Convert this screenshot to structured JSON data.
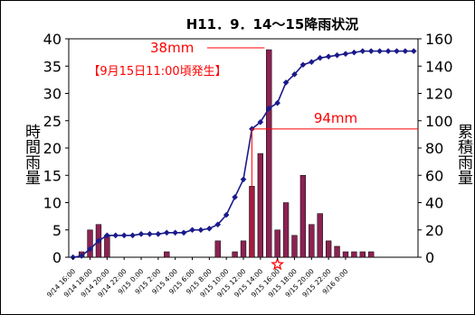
{
  "chart_data": {
    "type": "bar+line",
    "title": "H11．9．14～15降雨状況",
    "ylabel_left": "時間雨量",
    "ylabel_right": "累積雨量",
    "ylim_left": [
      0,
      40
    ],
    "ylim_right": [
      0,
      160
    ],
    "yticks_left": [
      "0",
      "5",
      "10",
      "15",
      "20",
      "25",
      "30",
      "35",
      "40"
    ],
    "yticks_right": [
      "0",
      "20",
      "40",
      "60",
      "80",
      "100",
      "120",
      "140",
      "160"
    ],
    "x_tick_labels": [
      "9/14 16:00",
      "9/14 18:00",
      "9/14 20:00",
      "9/14 22:00",
      "9/15 0:00",
      "9/15 2:00",
      "9/15 4:00",
      "9/15 6:00",
      "9/15 8:00",
      "9/15 10:00",
      "9/15 12:00",
      "9/15 14:00",
      "9/15 16:00",
      "9/15 18:00",
      "9/15 20:00",
      "9/15 22:00",
      "9/16 0:00"
    ],
    "series": [
      {
        "kind": "bar",
        "axis": "left",
        "color": "#8b2252",
        "values": [
          0,
          1,
          5,
          6,
          4,
          0,
          0,
          0,
          0,
          0,
          0,
          1,
          0,
          0,
          0,
          0,
          0,
          3,
          0,
          1,
          3,
          13,
          19,
          38,
          5,
          10,
          4,
          15,
          6,
          8,
          3,
          2,
          1,
          1,
          1,
          1,
          0,
          0,
          0,
          0,
          0
        ]
      },
      {
        "kind": "line",
        "axis": "right",
        "color": "#1a1a8a",
        "values": [
          0,
          1,
          6,
          12,
          16,
          16,
          16,
          16,
          17,
          17,
          17,
          18,
          18,
          18,
          20,
          20,
          21,
          24,
          31,
          44,
          57,
          94,
          99,
          109,
          113,
          128,
          134,
          141,
          143,
          146,
          147,
          148,
          149,
          150,
          151,
          151,
          151,
          151,
          151,
          151,
          151
        ]
      }
    ],
    "annotations": {
      "peak_label": "38mm",
      "event_label": "【9月15日11:00頃発生】",
      "total_label": "94mm",
      "event_marker": "star"
    },
    "colors": {
      "bar": "#8b2252",
      "line": "#1a1a8a",
      "annotation": "#ff0000"
    }
  }
}
